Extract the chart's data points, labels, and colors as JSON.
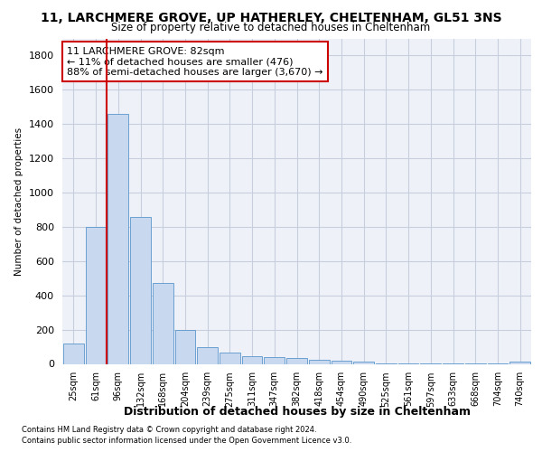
{
  "title": "11, LARCHMERE GROVE, UP HATHERLEY, CHELTENHAM, GL51 3NS",
  "subtitle": "Size of property relative to detached houses in Cheltenham",
  "xlabel": "Distribution of detached houses by size in Cheltenham",
  "ylabel": "Number of detached properties",
  "bar_color": "#c8d8ef",
  "bar_edge_color": "#5a96cc",
  "categories": [
    "25sqm",
    "61sqm",
    "96sqm",
    "132sqm",
    "168sqm",
    "204sqm",
    "239sqm",
    "275sqm",
    "311sqm",
    "347sqm",
    "382sqm",
    "418sqm",
    "454sqm",
    "490sqm",
    "525sqm",
    "561sqm",
    "597sqm",
    "633sqm",
    "668sqm",
    "704sqm",
    "740sqm"
  ],
  "values": [
    120,
    800,
    1460,
    860,
    475,
    200,
    100,
    65,
    45,
    38,
    32,
    25,
    20,
    12,
    5,
    3,
    2,
    2,
    1,
    1,
    15
  ],
  "vline_color": "#cc0000",
  "vline_x": 1.5,
  "annotation_line1": "11 LARCHMERE GROVE: 82sqm",
  "annotation_line2": "← 11% of detached houses are smaller (476)",
  "annotation_line3": "88% of semi-detached houses are larger (3,670) →",
  "ylim_max": 1900,
  "yticks": [
    0,
    200,
    400,
    600,
    800,
    1000,
    1200,
    1400,
    1600,
    1800
  ],
  "footer1": "Contains HM Land Registry data © Crown copyright and database right 2024.",
  "footer2": "Contains public sector information licensed under the Open Government Licence v3.0.",
  "bg_color": "#eef2f8",
  "grid_color": "#c8cedd"
}
